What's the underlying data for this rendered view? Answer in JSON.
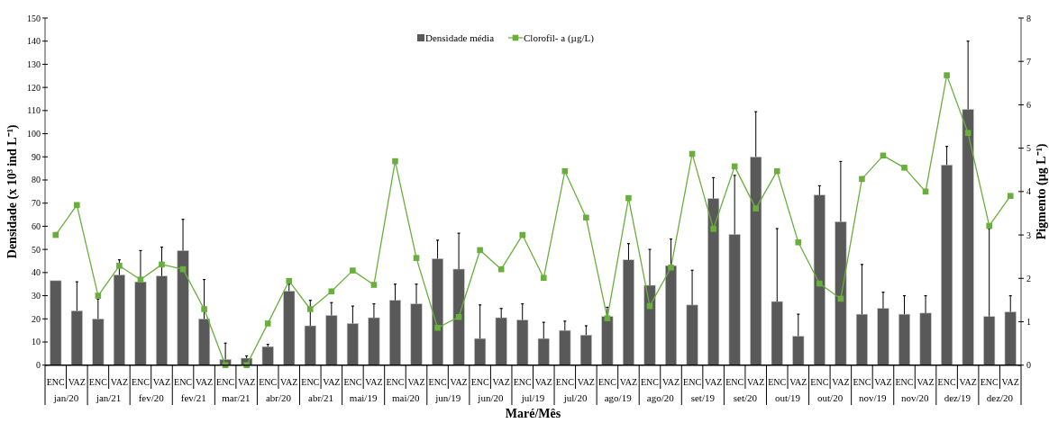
{
  "chart_data": {
    "type": "bar",
    "xlabel": "Maré/Mês",
    "ylabel": "Densidade (x 10³ ind L⁻¹)",
    "y2label": "Pigmento (µg L⁻¹)",
    "categories": [
      "ENC",
      "VAZ",
      "ENC",
      "VAZ",
      "ENC",
      "VAZ",
      "ENC",
      "VAZ",
      "ENC",
      "VAZ",
      "ENC",
      "VAZ",
      "ENC",
      "VAZ",
      "ENC",
      "VAZ",
      "ENC",
      "VAZ",
      "ENC",
      "VAZ",
      "ENC",
      "VAZ",
      "ENC",
      "VAZ",
      "ENC",
      "VAZ",
      "ENC",
      "VAZ",
      "ENC",
      "VAZ",
      "ENC",
      "VAZ",
      "ENC",
      "VAZ",
      "ENC",
      "VAZ",
      "ENC",
      "VAZ",
      "ENC",
      "VAZ",
      "ENC",
      "VAZ",
      "ENC",
      "VAZ",
      "ENC",
      "VAZ"
    ],
    "annotations": [
      "jan/20",
      "jan/21",
      "fev/20",
      "fev/21",
      "mar/21",
      "abr/20",
      "abr/21",
      "mai/19",
      "mai/20",
      "jun/19",
      "jun/20",
      "jul/19",
      "jul/20",
      "ago/19",
      "ago/20",
      "set/19",
      "set/20",
      "out/19",
      "out/20",
      "nov/19",
      "nov/20",
      "dez/19",
      "dez/20"
    ],
    "series": [
      {
        "name": "Densidade média",
        "color": "#595959",
        "values": [
          36.5,
          23.5,
          20,
          39,
          36,
          38.5,
          49.5,
          20,
          2.5,
          3,
          8,
          32,
          17,
          21.5,
          18,
          20.5,
          28,
          26.5,
          46,
          41.5,
          11.5,
          20.5,
          19.5,
          11.5,
          15,
          13,
          21,
          45.5,
          34.5,
          43,
          26,
          72,
          56.5,
          90,
          27.5,
          12.5,
          73.5,
          62,
          22,
          24.5,
          22,
          22.5,
          86.5,
          110.5,
          21,
          23
        ],
        "errors": [
          null,
          [
            23.5,
            36
          ],
          [
            20,
            28.5
          ],
          [
            39,
            45.5
          ],
          [
            36,
            49.5
          ],
          [
            38.5,
            51
          ],
          [
            49.5,
            63
          ],
          [
            20,
            37
          ],
          [
            2.5,
            9.5
          ],
          [
            3,
            4
          ],
          [
            8,
            9
          ],
          [
            32,
            35
          ],
          [
            17,
            28
          ],
          [
            21.5,
            27
          ],
          [
            18,
            25.5
          ],
          [
            20.5,
            26.5
          ],
          [
            28,
            35
          ],
          [
            26.5,
            35
          ],
          [
            46,
            54
          ],
          [
            41.5,
            57
          ],
          [
            11.5,
            26
          ],
          [
            20.5,
            24.5
          ],
          [
            19.5,
            26.5
          ],
          [
            11.5,
            18.5
          ],
          [
            15,
            19
          ],
          [
            13,
            17
          ],
          [
            21,
            25
          ],
          [
            45.5,
            52.5
          ],
          [
            34.5,
            50
          ],
          [
            43,
            54.5
          ],
          [
            26,
            41
          ],
          [
            72,
            81
          ],
          [
            56.5,
            82
          ],
          [
            90,
            109.5
          ],
          [
            27.5,
            59
          ],
          [
            12.5,
            22
          ],
          [
            73.5,
            77.5
          ],
          [
            62,
            88
          ],
          [
            22,
            43.5
          ],
          [
            24.5,
            31.5
          ],
          [
            22,
            30
          ],
          [
            22.5,
            30
          ],
          [
            86.5,
            94.5
          ],
          [
            110.5,
            140
          ],
          [
            21,
            59
          ],
          [
            23,
            30
          ]
        ]
      },
      {
        "name": "Clorofil- a (µg/L)",
        "type": "line",
        "axis": "y2",
        "color": "#6aaf3d",
        "marker": "square",
        "values": [
          3.0,
          3.69,
          1.6,
          2.29,
          1.97,
          2.32,
          2.21,
          1.29,
          0,
          0,
          0.96,
          1.94,
          1.29,
          1.7,
          2.18,
          1.85,
          4.7,
          2.47,
          0.86,
          1.11,
          2.65,
          2.21,
          3.0,
          2.01,
          4.47,
          3.4,
          1.08,
          3.85,
          1.36,
          2.25,
          4.87,
          3.14,
          4.58,
          3.61,
          4.47,
          2.83,
          1.88,
          1.53,
          4.29,
          4.83,
          4.55,
          4.0,
          6.68,
          5.35,
          3.21,
          3.9
        ]
      }
    ],
    "ylim": [
      0,
      150
    ],
    "yticks": [
      0,
      10,
      20,
      30,
      40,
      50,
      60,
      70,
      80,
      90,
      100,
      110,
      120,
      130,
      140,
      150
    ],
    "y2lim": [
      0,
      8
    ],
    "y2ticks": [
      0,
      1,
      2,
      3,
      4,
      5,
      6,
      7,
      8
    ],
    "legend": "top",
    "grid": false
  }
}
